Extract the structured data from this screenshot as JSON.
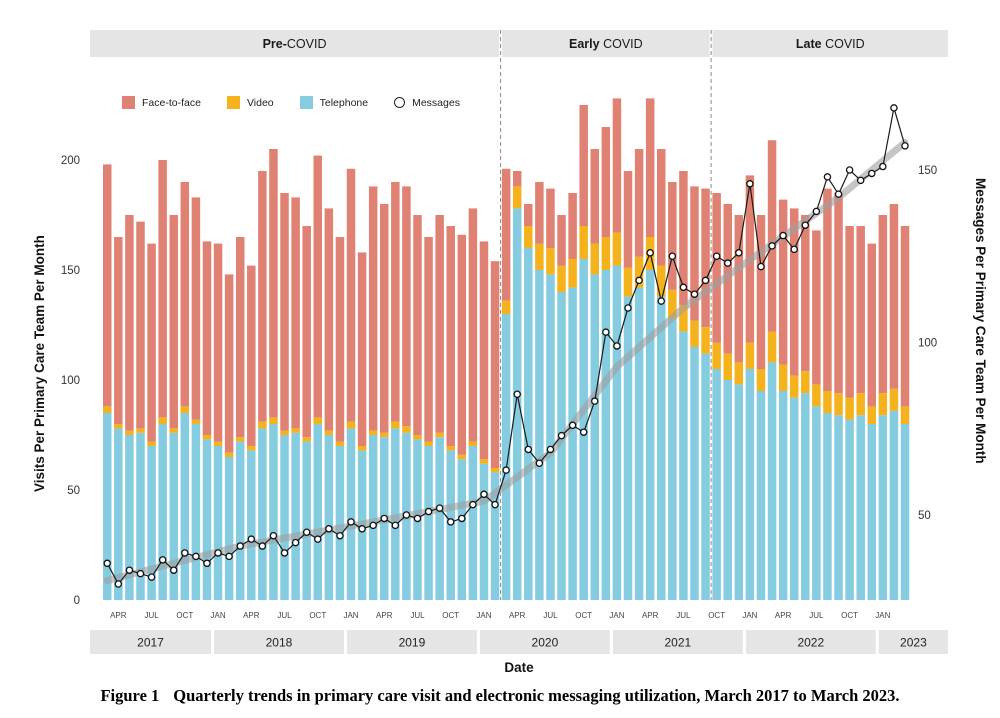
{
  "figure": {
    "caption_label": "Figure 1",
    "caption_text": "Quarterly trends in primary care visit and electronic messaging utilization, March 2017 to March 2023."
  },
  "chart_data": {
    "type": "bar",
    "subtype": "stacked-bar-with-line-overlay",
    "title": "",
    "left_axis": {
      "label": "Visits Per Primary Care Team Per Month",
      "ticks": [
        0,
        50,
        100,
        150,
        200
      ],
      "range": [
        0,
        245
      ]
    },
    "right_axis": {
      "label": "Messages Per Primary Care Team Per Month",
      "ticks": [
        50,
        100,
        150
      ],
      "range": [
        25,
        180
      ]
    },
    "x_axis": {
      "label": "Date",
      "month_tick_labels": {
        "1": "JAN",
        "4": "APR",
        "7": "JUL",
        "10": "OCT"
      },
      "year_bands": [
        {
          "label": "2017",
          "start": 0,
          "end": 10
        },
        {
          "label": "2018",
          "start": 10,
          "end": 22
        },
        {
          "label": "2019",
          "start": 22,
          "end": 34
        },
        {
          "label": "2020",
          "start": 34,
          "end": 46
        },
        {
          "label": "2021",
          "start": 46,
          "end": 58
        },
        {
          "label": "2022",
          "start": 58,
          "end": 70
        },
        {
          "label": "2023",
          "start": 70,
          "end": 73
        }
      ]
    },
    "periods": [
      {
        "bold": "Pre-",
        "rest": "COVID",
        "start": 0,
        "end": 36
      },
      {
        "bold": "Early ",
        "rest": "COVID",
        "start": 36,
        "end": 55
      },
      {
        "bold": "Late ",
        "rest": "COVID",
        "start": 55,
        "end": 73
      }
    ],
    "legend": [
      {
        "label": "Face-to-face",
        "color": "#E08273",
        "type": "square"
      },
      {
        "label": "Video",
        "color": "#F4B31C",
        "type": "square"
      },
      {
        "label": "Telephone",
        "color": "#85CCE1",
        "type": "square"
      },
      {
        "label": "Messages",
        "color": "#222222",
        "type": "circle-outline"
      }
    ],
    "colors": {
      "face_to_face": "#E08273",
      "video": "#F4B31C",
      "telephone": "#85CCE1",
      "trend": "#9E9E9E",
      "band": "#E5E5E5",
      "messages_line": "#1A1A1A"
    },
    "series": {
      "months": [
        "2017-03",
        "2017-04",
        "2017-05",
        "2017-06",
        "2017-07",
        "2017-08",
        "2017-09",
        "2017-10",
        "2017-11",
        "2017-12",
        "2018-01",
        "2018-02",
        "2018-03",
        "2018-04",
        "2018-05",
        "2018-06",
        "2018-07",
        "2018-08",
        "2018-09",
        "2018-10",
        "2018-11",
        "2018-12",
        "2019-01",
        "2019-02",
        "2019-03",
        "2019-04",
        "2019-05",
        "2019-06",
        "2019-07",
        "2019-08",
        "2019-09",
        "2019-10",
        "2019-11",
        "2019-12",
        "2020-01",
        "2020-02",
        "2020-03",
        "2020-04",
        "2020-05",
        "2020-06",
        "2020-07",
        "2020-08",
        "2020-09",
        "2020-10",
        "2020-11",
        "2020-12",
        "2021-01",
        "2021-02",
        "2021-03",
        "2021-04",
        "2021-05",
        "2021-06",
        "2021-07",
        "2021-08",
        "2021-09",
        "2021-10",
        "2021-11",
        "2021-12",
        "2022-01",
        "2022-02",
        "2022-03",
        "2022-04",
        "2022-05",
        "2022-06",
        "2022-07",
        "2022-08",
        "2022-09",
        "2022-10",
        "2022-11",
        "2022-12",
        "2023-01",
        "2023-02",
        "2023-03"
      ],
      "telephone": [
        85,
        78,
        75,
        76,
        70,
        80,
        76,
        85,
        80,
        73,
        70,
        65,
        72,
        68,
        78,
        80,
        75,
        76,
        72,
        80,
        75,
        70,
        78,
        68,
        75,
        74,
        78,
        76,
        73,
        70,
        74,
        68,
        64,
        70,
        62,
        58,
        130,
        178,
        160,
        150,
        148,
        140,
        142,
        155,
        148,
        150,
        152,
        138,
        142,
        150,
        138,
        128,
        122,
        115,
        112,
        105,
        100,
        98,
        105,
        95,
        108,
        95,
        92,
        94,
        88,
        85,
        84,
        82,
        84,
        80,
        84,
        86,
        80
      ],
      "video": [
        3,
        2,
        2,
        2,
        2,
        3,
        2,
        3,
        2,
        2,
        2,
        2,
        2,
        2,
        3,
        3,
        2,
        2,
        2,
        3,
        2,
        2,
        3,
        2,
        2,
        2,
        3,
        3,
        2,
        2,
        2,
        2,
        2,
        2,
        2,
        2,
        6,
        10,
        10,
        12,
        12,
        12,
        13,
        15,
        14,
        15,
        15,
        13,
        14,
        15,
        14,
        13,
        12,
        12,
        12,
        12,
        12,
        10,
        12,
        10,
        14,
        12,
        10,
        10,
        10,
        10,
        10,
        10,
        10,
        8,
        10,
        10,
        8
      ],
      "face_to_face": [
        110,
        85,
        98,
        94,
        90,
        117,
        97,
        102,
        101,
        88,
        90,
        81,
        91,
        82,
        114,
        122,
        108,
        105,
        96,
        119,
        101,
        93,
        115,
        88,
        111,
        104,
        109,
        109,
        100,
        93,
        99,
        100,
        100,
        106,
        99,
        94,
        60,
        7,
        10,
        28,
        27,
        23,
        30,
        55,
        43,
        50,
        61,
        44,
        49,
        63,
        53,
        49,
        61,
        61,
        63,
        68,
        68,
        67,
        76,
        70,
        87,
        75,
        76,
        71,
        70,
        92,
        91,
        78,
        76,
        74,
        81,
        84,
        82
      ],
      "messages": [
        36,
        30,
        34,
        33,
        32,
        37,
        34,
        39,
        38,
        36,
        39,
        38,
        41,
        43,
        41,
        44,
        39,
        42,
        45,
        43,
        46,
        44,
        48,
        46,
        47,
        49,
        47,
        50,
        49,
        51,
        52,
        48,
        49,
        53,
        56,
        53,
        63,
        85,
        69,
        65,
        69,
        73,
        76,
        74,
        83,
        103,
        99,
        110,
        118,
        126,
        112,
        125,
        116,
        114,
        118,
        125,
        123,
        126,
        146,
        122,
        128,
        131,
        127,
        134,
        138,
        148,
        143,
        150,
        147,
        149,
        151,
        168,
        157
      ]
    },
    "trend": [
      [
        0,
        31
      ],
      [
        12,
        41
      ],
      [
        24,
        48
      ],
      [
        34,
        54
      ],
      [
        40,
        68
      ],
      [
        46,
        93
      ],
      [
        52,
        110
      ],
      [
        58,
        124
      ],
      [
        66,
        142
      ],
      [
        72,
        158
      ]
    ]
  }
}
